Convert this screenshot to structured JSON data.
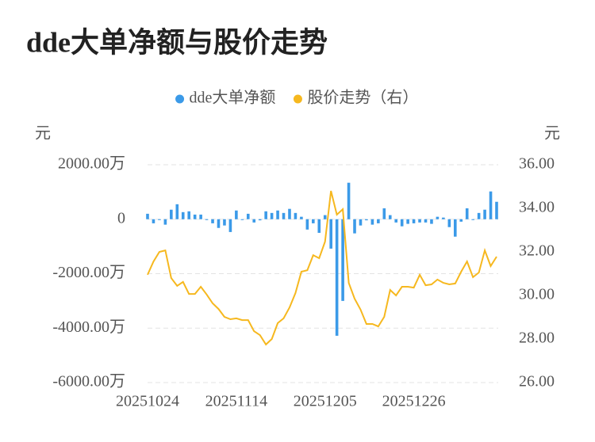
{
  "chart_data": {
    "type": "bar",
    "title": "dde大单净额与股价走势",
    "y_label": "元",
    "y2_label": "元",
    "categories": [
      "20251024",
      null,
      null,
      null,
      null,
      null,
      null,
      null,
      null,
      null,
      null,
      null,
      null,
      null,
      null,
      "20251114",
      null,
      null,
      null,
      null,
      null,
      null,
      null,
      null,
      null,
      null,
      null,
      null,
      null,
      null,
      "20251205",
      null,
      null,
      null,
      null,
      null,
      null,
      null,
      null,
      null,
      null,
      null,
      null,
      null,
      null,
      "20251226",
      null,
      null,
      null,
      null,
      null,
      null,
      null,
      null,
      null,
      null,
      null,
      null,
      null,
      null
    ],
    "series": [
      {
        "name": "dde大单净额",
        "type": "bar",
        "color": "#3b9ae8",
        "values": [
          2000000,
          -1500000,
          -300000,
          -2000000,
          3500000,
          5500000,
          2600000,
          2900000,
          1700000,
          1700000,
          -300000,
          -1500000,
          -3200000,
          -2300000,
          -4700000,
          3200000,
          -300000,
          2000000,
          -1200000,
          -400000,
          2900000,
          2300000,
          3200000,
          2300000,
          3800000,
          2300000,
          900000,
          -3800000,
          -1500000,
          -5000000,
          1500000,
          -10800000,
          -42800000,
          -30000000,
          13400000,
          -5200000,
          -2300000,
          -400000,
          -2000000,
          -1500000,
          4000000,
          1500000,
          -1200000,
          -2600000,
          -1700000,
          -1500000,
          -1200000,
          -1200000,
          -1700000,
          900000,
          600000,
          -2900000,
          -6400000,
          -900000,
          4000000,
          -300000,
          2300000,
          3500000,
          10200000,
          6400000
        ]
      },
      {
        "name": "股价走势（右）",
        "type": "line",
        "axis": "y2",
        "color": "#f6b81f",
        "values": [
          30.95,
          31.56,
          32.0,
          32.07,
          30.8,
          30.44,
          30.62,
          30.07,
          30.07,
          30.4,
          30.04,
          29.64,
          29.38,
          29.02,
          28.91,
          28.95,
          28.87,
          28.87,
          28.36,
          28.18,
          27.75,
          28.0,
          28.73,
          28.95,
          29.45,
          30.11,
          31.09,
          31.16,
          31.85,
          31.71,
          32.47,
          34.8,
          33.71,
          33.96,
          30.58,
          29.85,
          29.35,
          28.69,
          28.69,
          28.58,
          29.02,
          30.25,
          30.0,
          30.4,
          30.4,
          30.36,
          30.95,
          30.47,
          30.51,
          30.73,
          30.58,
          30.51,
          30.55,
          31.09,
          31.56,
          30.84,
          31.05,
          32.07,
          31.35,
          31.78
        ]
      }
    ],
    "ylim": [
      -60000000,
      20000000
    ],
    "yticks": [
      {
        "value": -60000000,
        "label": "-6000.00万"
      },
      {
        "value": -40000000,
        "label": "-4000.00万"
      },
      {
        "value": -20000000,
        "label": "-2000.00万"
      },
      0,
      {
        "value": 20000000,
        "label": "2000.00万"
      }
    ],
    "y2lim": [
      26,
      36
    ],
    "y2ticks": [
      {
        "value": 26,
        "label": "26.00"
      },
      {
        "value": 28,
        "label": "28.00"
      },
      {
        "value": 30,
        "label": "30.00"
      },
      {
        "value": 32,
        "label": "32.00"
      },
      {
        "value": 34,
        "label": "34.00"
      },
      {
        "value": 36,
        "label": "36.00"
      }
    ],
    "grid": true,
    "legend": "top"
  }
}
